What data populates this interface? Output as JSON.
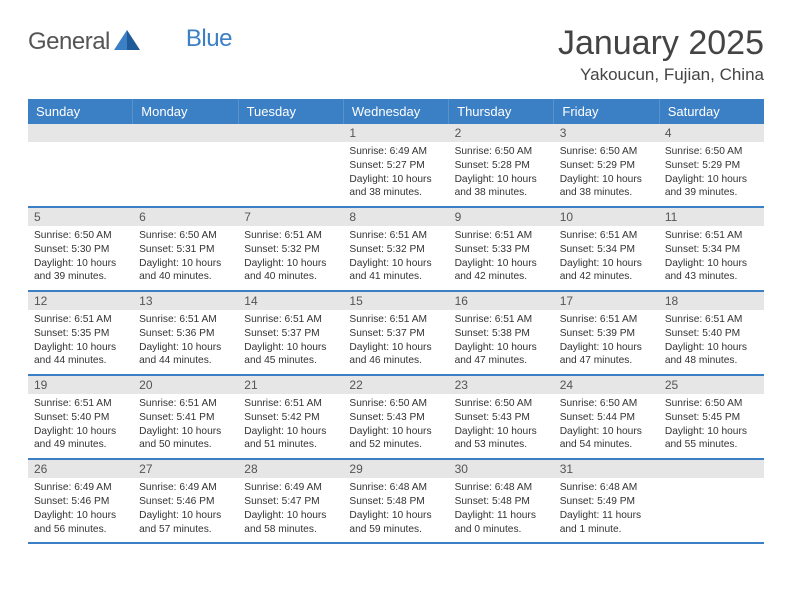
{
  "logo": {
    "text1": "General",
    "text2": "Blue"
  },
  "title": "January 2025",
  "location": "Yakoucun, Fujian, China",
  "colors": {
    "header_bg": "#3b7fc4",
    "daynum_bg": "#e6e6e6",
    "border": "#3b7fc4",
    "text": "#333333",
    "logo_gray": "#555555",
    "logo_blue": "#3b7fc4",
    "background": "#ffffff"
  },
  "calendar": {
    "day_names": [
      "Sunday",
      "Monday",
      "Tuesday",
      "Wednesday",
      "Thursday",
      "Friday",
      "Saturday"
    ],
    "weeks": [
      [
        {
          "empty": true
        },
        {
          "empty": true
        },
        {
          "empty": true
        },
        {
          "num": "1",
          "sunrise": "6:49 AM",
          "sunset": "5:27 PM",
          "daylight": "10 hours and 38 minutes."
        },
        {
          "num": "2",
          "sunrise": "6:50 AM",
          "sunset": "5:28 PM",
          "daylight": "10 hours and 38 minutes."
        },
        {
          "num": "3",
          "sunrise": "6:50 AM",
          "sunset": "5:29 PM",
          "daylight": "10 hours and 38 minutes."
        },
        {
          "num": "4",
          "sunrise": "6:50 AM",
          "sunset": "5:29 PM",
          "daylight": "10 hours and 39 minutes."
        }
      ],
      [
        {
          "num": "5",
          "sunrise": "6:50 AM",
          "sunset": "5:30 PM",
          "daylight": "10 hours and 39 minutes."
        },
        {
          "num": "6",
          "sunrise": "6:50 AM",
          "sunset": "5:31 PM",
          "daylight": "10 hours and 40 minutes."
        },
        {
          "num": "7",
          "sunrise": "6:51 AM",
          "sunset": "5:32 PM",
          "daylight": "10 hours and 40 minutes."
        },
        {
          "num": "8",
          "sunrise": "6:51 AM",
          "sunset": "5:32 PM",
          "daylight": "10 hours and 41 minutes."
        },
        {
          "num": "9",
          "sunrise": "6:51 AM",
          "sunset": "5:33 PM",
          "daylight": "10 hours and 42 minutes."
        },
        {
          "num": "10",
          "sunrise": "6:51 AM",
          "sunset": "5:34 PM",
          "daylight": "10 hours and 42 minutes."
        },
        {
          "num": "11",
          "sunrise": "6:51 AM",
          "sunset": "5:34 PM",
          "daylight": "10 hours and 43 minutes."
        }
      ],
      [
        {
          "num": "12",
          "sunrise": "6:51 AM",
          "sunset": "5:35 PM",
          "daylight": "10 hours and 44 minutes."
        },
        {
          "num": "13",
          "sunrise": "6:51 AM",
          "sunset": "5:36 PM",
          "daylight": "10 hours and 44 minutes."
        },
        {
          "num": "14",
          "sunrise": "6:51 AM",
          "sunset": "5:37 PM",
          "daylight": "10 hours and 45 minutes."
        },
        {
          "num": "15",
          "sunrise": "6:51 AM",
          "sunset": "5:37 PM",
          "daylight": "10 hours and 46 minutes."
        },
        {
          "num": "16",
          "sunrise": "6:51 AM",
          "sunset": "5:38 PM",
          "daylight": "10 hours and 47 minutes."
        },
        {
          "num": "17",
          "sunrise": "6:51 AM",
          "sunset": "5:39 PM",
          "daylight": "10 hours and 47 minutes."
        },
        {
          "num": "18",
          "sunrise": "6:51 AM",
          "sunset": "5:40 PM",
          "daylight": "10 hours and 48 minutes."
        }
      ],
      [
        {
          "num": "19",
          "sunrise": "6:51 AM",
          "sunset": "5:40 PM",
          "daylight": "10 hours and 49 minutes."
        },
        {
          "num": "20",
          "sunrise": "6:51 AM",
          "sunset": "5:41 PM",
          "daylight": "10 hours and 50 minutes."
        },
        {
          "num": "21",
          "sunrise": "6:51 AM",
          "sunset": "5:42 PM",
          "daylight": "10 hours and 51 minutes."
        },
        {
          "num": "22",
          "sunrise": "6:50 AM",
          "sunset": "5:43 PM",
          "daylight": "10 hours and 52 minutes."
        },
        {
          "num": "23",
          "sunrise": "6:50 AM",
          "sunset": "5:43 PM",
          "daylight": "10 hours and 53 minutes."
        },
        {
          "num": "24",
          "sunrise": "6:50 AM",
          "sunset": "5:44 PM",
          "daylight": "10 hours and 54 minutes."
        },
        {
          "num": "25",
          "sunrise": "6:50 AM",
          "sunset": "5:45 PM",
          "daylight": "10 hours and 55 minutes."
        }
      ],
      [
        {
          "num": "26",
          "sunrise": "6:49 AM",
          "sunset": "5:46 PM",
          "daylight": "10 hours and 56 minutes."
        },
        {
          "num": "27",
          "sunrise": "6:49 AM",
          "sunset": "5:46 PM",
          "daylight": "10 hours and 57 minutes."
        },
        {
          "num": "28",
          "sunrise": "6:49 AM",
          "sunset": "5:47 PM",
          "daylight": "10 hours and 58 minutes."
        },
        {
          "num": "29",
          "sunrise": "6:48 AM",
          "sunset": "5:48 PM",
          "daylight": "10 hours and 59 minutes."
        },
        {
          "num": "30",
          "sunrise": "6:48 AM",
          "sunset": "5:48 PM",
          "daylight": "11 hours and 0 minutes."
        },
        {
          "num": "31",
          "sunrise": "6:48 AM",
          "sunset": "5:49 PM",
          "daylight": "11 hours and 1 minute."
        },
        {
          "empty": true
        }
      ]
    ],
    "labels": {
      "sunrise": "Sunrise:",
      "sunset": "Sunset:",
      "daylight": "Daylight:"
    }
  }
}
